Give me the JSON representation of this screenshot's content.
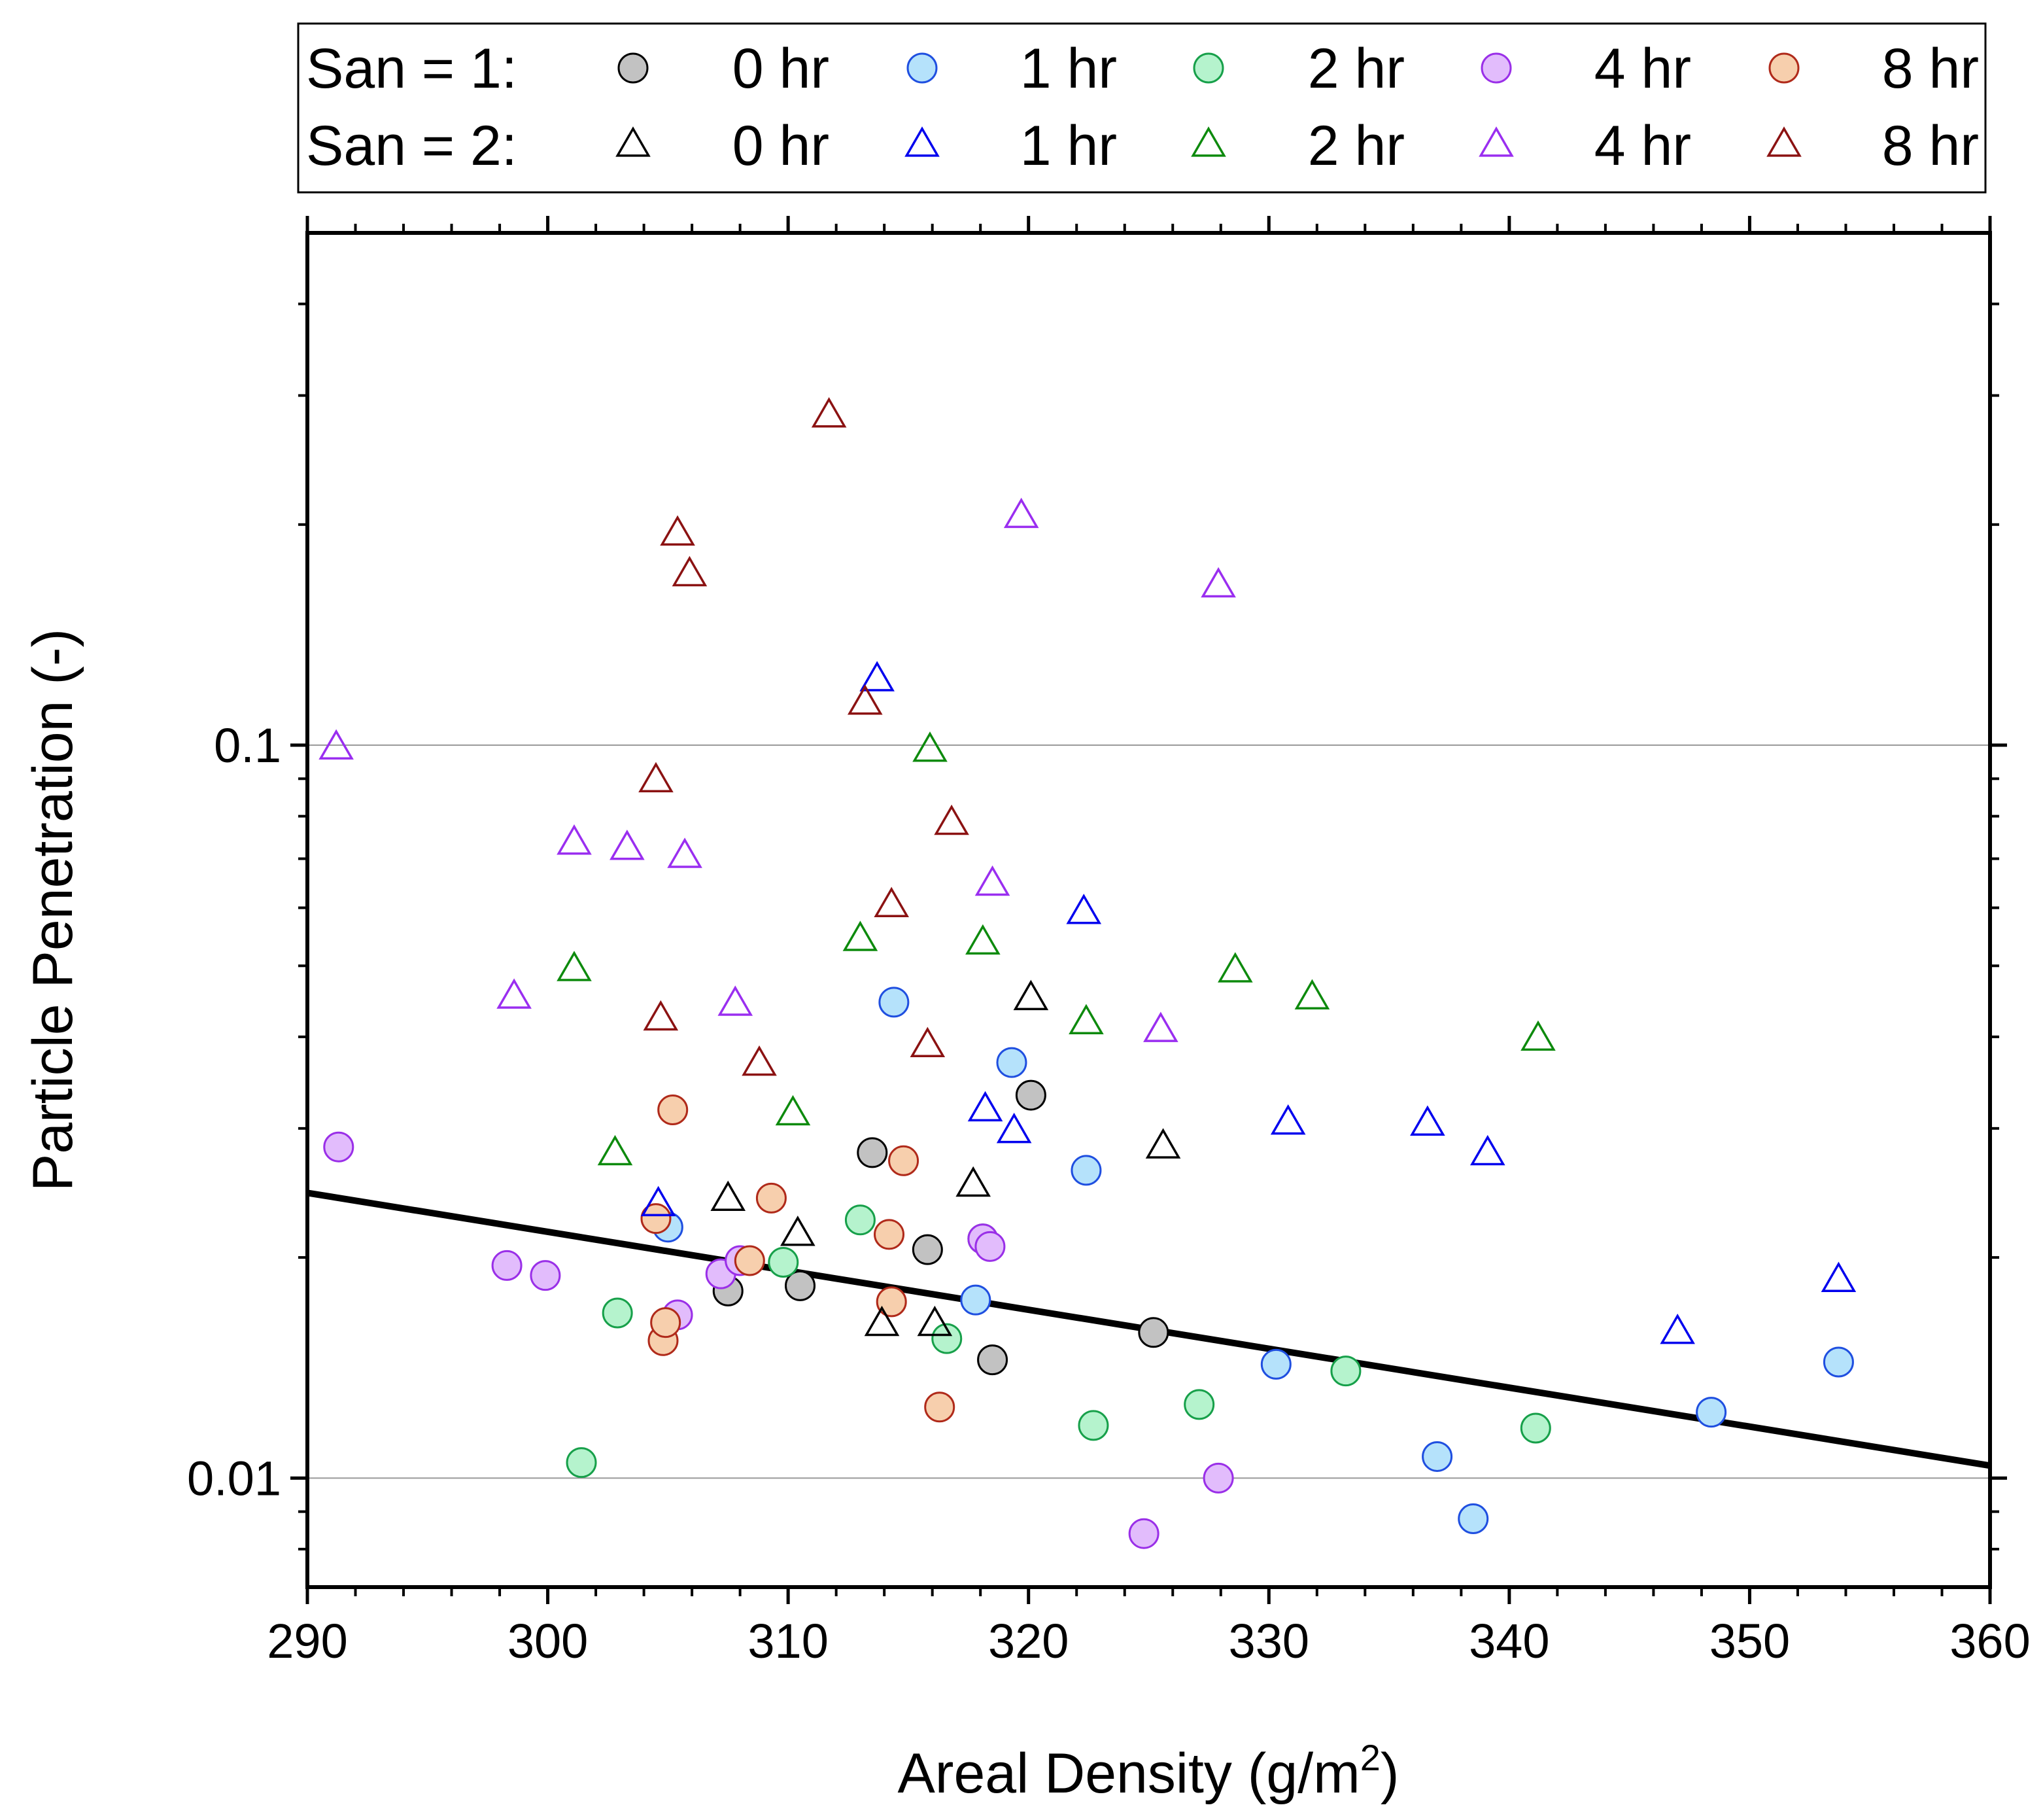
{
  "chart_data": {
    "type": "scatter",
    "xlabel": "Areal Density (g/m",
    "xlabel_sup": "2",
    "xlabel_end": ")",
    "ylabel": "Particle Penetration (-)",
    "xlim": [
      290,
      360
    ],
    "ylim": [
      0.0071,
      0.5
    ],
    "yscale": "log",
    "x_ticks": [
      "290",
      "300",
      "310",
      "320",
      "330",
      "340",
      "350",
      "360"
    ],
    "y_ticks": [
      "0.01",
      "0.1"
    ],
    "y_gridlines": [
      0.01,
      0.1
    ],
    "legend": {
      "placement": "top",
      "row_labels": [
        "San = 1:",
        "San = 2:"
      ],
      "time_labels": [
        "0 hr",
        "1 hr",
        "2 hr",
        "4 hr",
        "8 hr"
      ]
    },
    "fit_line": {
      "x": [
        290,
        360
      ],
      "y": [
        0.0245,
        0.0104
      ]
    },
    "series": [
      {
        "name": "0 hr",
        "san": 1,
        "marker": "circle",
        "color": "#000000",
        "fill": "#c2c2c2",
        "points": [
          [
            307.5,
            0.018
          ],
          [
            310.5,
            0.0183
          ],
          [
            313.5,
            0.0278
          ],
          [
            315.8,
            0.0205
          ],
          [
            318.5,
            0.0145
          ],
          [
            320.1,
            0.0333
          ],
          [
            325.2,
            0.0158
          ]
        ]
      },
      {
        "name": "1 hr",
        "san": 1,
        "marker": "circle",
        "color": "#1f4fe0",
        "fill": "#b5e2fb",
        "points": [
          [
            305,
            0.022
          ],
          [
            314.4,
            0.0446
          ],
          [
            317.8,
            0.0175
          ],
          [
            319.3,
            0.0369
          ],
          [
            322.4,
            0.0263
          ],
          [
            330.3,
            0.0143
          ],
          [
            337,
            0.0107
          ],
          [
            338.5,
            0.0088
          ],
          [
            348.4,
            0.0123
          ],
          [
            353.7,
            0.0144
          ]
        ]
      },
      {
        "name": "2 hr",
        "san": 1,
        "marker": "circle",
        "color": "#17a04a",
        "fill": "#b5f3cd",
        "points": [
          [
            301.4,
            0.0105
          ],
          [
            302.9,
            0.0168
          ],
          [
            309.8,
            0.0197
          ],
          [
            313,
            0.0225
          ],
          [
            316.6,
            0.0155
          ],
          [
            318.1,
            0.0212
          ],
          [
            322.7,
            0.0118
          ],
          [
            327.1,
            0.0126
          ],
          [
            333.2,
            0.014
          ],
          [
            341.1,
            0.0117
          ]
        ]
      },
      {
        "name": "4 hr",
        "san": 1,
        "marker": "circle",
        "color": "#9a2fe8",
        "fill": "#e2bcfc",
        "points": [
          [
            291.3,
            0.0283
          ],
          [
            298.3,
            0.0195
          ],
          [
            299.9,
            0.0189
          ],
          [
            305.4,
            0.0167
          ],
          [
            307.2,
            0.019
          ],
          [
            308,
            0.0198
          ],
          [
            318.1,
            0.0212
          ],
          [
            318.4,
            0.0207
          ],
          [
            324.8,
            0.0084
          ],
          [
            327.9,
            0.01
          ]
        ]
      },
      {
        "name": "8 hr",
        "san": 1,
        "marker": "circle",
        "color": "#b02a1a",
        "fill": "#f7cfad",
        "points": [
          [
            304.5,
            0.0226
          ],
          [
            304.8,
            0.0154
          ],
          [
            304.9,
            0.0163
          ],
          [
            305.2,
            0.0318
          ],
          [
            308.4,
            0.0198
          ],
          [
            309.3,
            0.0241
          ],
          [
            314.2,
            0.0215
          ],
          [
            314.3,
            0.0174
          ],
          [
            314.8,
            0.0271
          ],
          [
            316.3,
            0.0125
          ]
        ]
      },
      {
        "name": "0 hr",
        "san": 2,
        "marker": "triangle",
        "color": "#000000",
        "points": [
          [
            307.5,
            0.024
          ],
          [
            310.4,
            0.0215
          ],
          [
            313.9,
            0.0162
          ],
          [
            316.1,
            0.0162
          ],
          [
            317.7,
            0.0251
          ],
          [
            320.1,
            0.0451
          ],
          [
            325.6,
            0.0283
          ]
        ]
      },
      {
        "name": "1 hr",
        "san": 2,
        "marker": "triangle",
        "color": "#0000ee",
        "points": [
          [
            304.6,
            0.0236
          ],
          [
            313.7,
            0.1228
          ],
          [
            318.2,
            0.0318
          ],
          [
            319.4,
            0.0297
          ],
          [
            322.3,
            0.0591
          ],
          [
            330.8,
            0.0305
          ],
          [
            336.6,
            0.0304
          ],
          [
            339.1,
            0.0277
          ],
          [
            347,
            0.0158
          ],
          [
            353.7,
            0.0186
          ]
        ]
      },
      {
        "name": "2 hr",
        "san": 2,
        "marker": "triangle",
        "color": "#0d8a0d",
        "points": [
          [
            301.1,
            0.0494
          ],
          [
            302.8,
            0.0277
          ],
          [
            310.2,
            0.0314
          ],
          [
            313,
            0.0543
          ],
          [
            315.9,
            0.0984
          ],
          [
            318.1,
            0.0537
          ],
          [
            322.4,
            0.0418
          ],
          [
            328.6,
            0.0492
          ],
          [
            331.8,
            0.0452
          ],
          [
            341.2,
            0.0397
          ]
        ]
      },
      {
        "name": "4 hr",
        "san": 2,
        "marker": "triangle",
        "color": "#9a2ef0",
        "points": [
          [
            291.2,
            0.0991
          ],
          [
            298.6,
            0.0453
          ],
          [
            301.1,
            0.0735
          ],
          [
            303.3,
            0.0723
          ],
          [
            305.7,
            0.0705
          ],
          [
            307.8,
            0.0443
          ],
          [
            318.5,
            0.0646
          ],
          [
            319.7,
            0.2051
          ],
          [
            325.5,
            0.0408
          ],
          [
            327.9,
            0.1649
          ]
        ]
      },
      {
        "name": "8 hr",
        "san": 2,
        "marker": "triangle",
        "color": "#8b1212",
        "points": [
          [
            304.5,
            0.0894
          ],
          [
            304.7,
            0.0423
          ],
          [
            305.4,
            0.1941
          ],
          [
            305.9,
            0.1708
          ],
          [
            308.8,
            0.0367
          ],
          [
            311.7,
            0.2813
          ],
          [
            313.2,
            0.1141
          ],
          [
            314.3,
            0.0604
          ],
          [
            315.8,
            0.0389
          ],
          [
            316.8,
            0.0782
          ]
        ]
      }
    ]
  }
}
